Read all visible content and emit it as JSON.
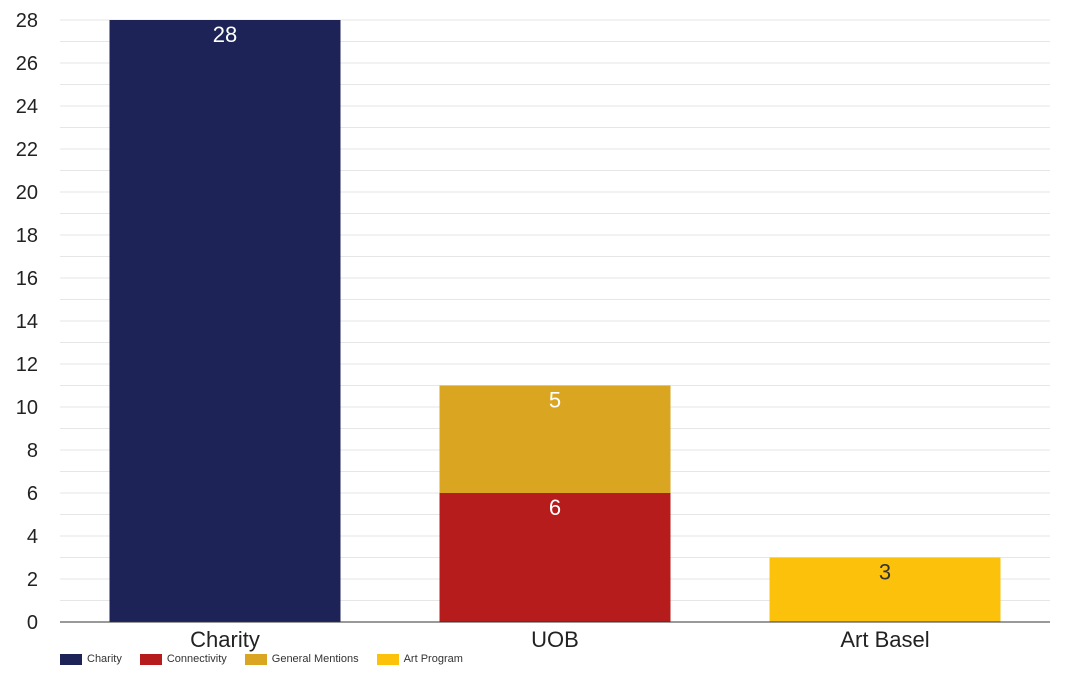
{
  "chart_data": {
    "type": "bar",
    "stacked": true,
    "categories": [
      "Charity",
      "UOB",
      "Art Basel"
    ],
    "series": [
      {
        "name": "Charity",
        "color": "#1d2357",
        "values": [
          28,
          0,
          0
        ]
      },
      {
        "name": "Connectivity",
        "color": "#b71c1c",
        "values": [
          0,
          6,
          0
        ]
      },
      {
        "name": "General Mentions",
        "color": "#daa520",
        "values": [
          0,
          5,
          0
        ]
      },
      {
        "name": "Art Program",
        "color": "#fcc10b",
        "values": [
          0,
          0,
          3
        ]
      }
    ],
    "ylim": [
      0,
      28
    ],
    "y_ticks": [
      0,
      2,
      4,
      6,
      8,
      10,
      12,
      14,
      16,
      18,
      20,
      22,
      24,
      26,
      28
    ],
    "grid": true,
    "legend_position": "bottom-left",
    "title": "",
    "xlabel": "",
    "ylabel": ""
  },
  "legend": [
    {
      "label": "Charity",
      "color": "#1d2357"
    },
    {
      "label": "Connectivity",
      "color": "#b71c1c"
    },
    {
      "label": "General Mentions",
      "color": "#daa520"
    },
    {
      "label": "Art Program",
      "color": "#fcc10b"
    }
  ]
}
